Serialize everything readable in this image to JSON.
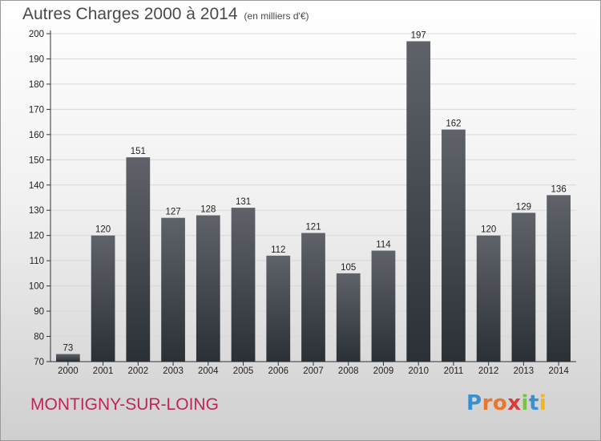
{
  "header": {
    "title": "Autres Charges 2000 à 2014",
    "subtitle": "(en milliers d'€)"
  },
  "footer": {
    "location": "MONTIGNY-SUR-LOING",
    "logo": {
      "letters": [
        "P",
        "r",
        "o",
        "x",
        "i",
        "t",
        "i"
      ],
      "colors": [
        "#3a8fd0",
        "#e8762b",
        "#e8762b",
        "#d93a3a",
        "#7cc242",
        "#3a8fd0",
        "#f2b51b"
      ]
    }
  },
  "chart_data": {
    "type": "bar",
    "title": "Autres Charges 2000 à 2014",
    "subtitle": "(en milliers d'€)",
    "xlabel": "",
    "ylabel": "",
    "categories": [
      "2000",
      "2001",
      "2002",
      "2003",
      "2004",
      "2005",
      "2006",
      "2007",
      "2008",
      "2009",
      "2010",
      "2011",
      "2012",
      "2013",
      "2014"
    ],
    "values": [
      73,
      120,
      151,
      127,
      128,
      131,
      112,
      121,
      105,
      114,
      197,
      162,
      120,
      129,
      136
    ],
    "ylim": [
      70,
      200
    ],
    "yticks": [
      70,
      80,
      90,
      100,
      110,
      120,
      130,
      140,
      150,
      160,
      170,
      180,
      190,
      200
    ],
    "grid": true,
    "legend": "none",
    "colors": {
      "bar_top": "#5f6369",
      "bar_bottom": "#2b3036",
      "grid": "#d8d8d8"
    }
  }
}
